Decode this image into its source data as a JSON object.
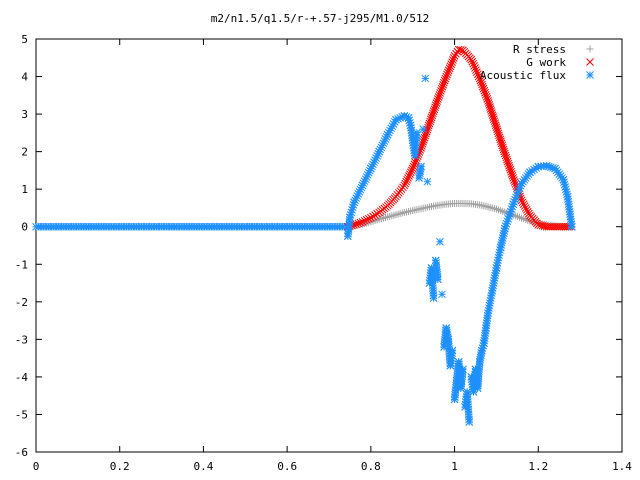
{
  "chart_data": {
    "type": "scatter",
    "title": "m2/n1.5/q1.5/r-+.57-j295/M1.0/512",
    "xlabel": "",
    "ylabel": "",
    "xlim": [
      0,
      1.4
    ],
    "ylim": [
      -6,
      5
    ],
    "xticks": [
      "0",
      "0.2",
      "0.4",
      "0.6",
      "0.8",
      "1",
      "1.2",
      "1.4"
    ],
    "yticks": [
      "-6",
      "-5",
      "-4",
      "-3",
      "-2",
      "-1",
      "0",
      "1",
      "2",
      "3",
      "4",
      "5"
    ],
    "grid": false,
    "legend_position": "top-right",
    "series": [
      {
        "name": "R stress",
        "marker": "plus",
        "color": "#a0a0a0",
        "points": [
          [
            0.745,
            0.0
          ],
          [
            0.76,
            0.03
          ],
          [
            0.78,
            0.07
          ],
          [
            0.8,
            0.13
          ],
          [
            0.82,
            0.2
          ],
          [
            0.84,
            0.26
          ],
          [
            0.86,
            0.32
          ],
          [
            0.88,
            0.38
          ],
          [
            0.9,
            0.43
          ],
          [
            0.92,
            0.48
          ],
          [
            0.94,
            0.53
          ],
          [
            0.96,
            0.57
          ],
          [
            0.98,
            0.6
          ],
          [
            1.0,
            0.62
          ],
          [
            1.02,
            0.62
          ],
          [
            1.04,
            0.61
          ],
          [
            1.06,
            0.58
          ],
          [
            1.08,
            0.53
          ],
          [
            1.1,
            0.47
          ],
          [
            1.12,
            0.39
          ],
          [
            1.14,
            0.31
          ],
          [
            1.16,
            0.23
          ],
          [
            1.18,
            0.15
          ],
          [
            1.2,
            0.09
          ],
          [
            1.22,
            0.05
          ],
          [
            1.24,
            0.02
          ],
          [
            1.26,
            0.01
          ],
          [
            1.28,
            0.0
          ]
        ]
      },
      {
        "name": "G work",
        "marker": "cross",
        "color": "#ff0000",
        "points": [
          [
            0.745,
            0.0
          ],
          [
            0.76,
            0.05
          ],
          [
            0.78,
            0.13
          ],
          [
            0.8,
            0.24
          ],
          [
            0.82,
            0.38
          ],
          [
            0.84,
            0.56
          ],
          [
            0.86,
            0.8
          ],
          [
            0.88,
            1.1
          ],
          [
            0.9,
            1.55
          ],
          [
            0.92,
            2.1
          ],
          [
            0.94,
            2.75
          ],
          [
            0.96,
            3.4
          ],
          [
            0.98,
            4.0
          ],
          [
            1.0,
            4.55
          ],
          [
            1.01,
            4.72
          ],
          [
            1.02,
            4.7
          ],
          [
            1.04,
            4.45
          ],
          [
            1.06,
            3.95
          ],
          [
            1.08,
            3.35
          ],
          [
            1.1,
            2.65
          ],
          [
            1.12,
            1.95
          ],
          [
            1.14,
            1.3
          ],
          [
            1.16,
            0.7
          ],
          [
            1.18,
            0.3
          ],
          [
            1.2,
            0.05
          ],
          [
            1.22,
            0.0
          ],
          [
            1.24,
            0.0
          ],
          [
            1.26,
            0.0
          ],
          [
            1.28,
            0.0
          ]
        ]
      },
      {
        "name": "Acoustic flux",
        "marker": "star",
        "color": "#1e90ff",
        "points": [
          [
            0.745,
            -0.25
          ],
          [
            0.75,
            0.25
          ],
          [
            0.76,
            0.65
          ],
          [
            0.78,
            1.1
          ],
          [
            0.8,
            1.55
          ],
          [
            0.82,
            2.0
          ],
          [
            0.84,
            2.45
          ],
          [
            0.86,
            2.85
          ],
          [
            0.88,
            2.95
          ],
          [
            0.89,
            2.9
          ],
          [
            0.895,
            2.7
          ],
          [
            0.9,
            2.3
          ],
          [
            0.905,
            1.9
          ],
          [
            0.91,
            2.5
          ],
          [
            0.915,
            1.3
          ],
          [
            0.92,
            1.6
          ],
          [
            0.925,
            2.6
          ],
          [
            0.93,
            3.95
          ],
          [
            0.935,
            1.2
          ],
          [
            0.94,
            -1.5
          ],
          [
            0.945,
            -1.1
          ],
          [
            0.95,
            -1.9
          ],
          [
            0.955,
            -0.9
          ],
          [
            0.96,
            -1.4
          ],
          [
            0.965,
            -0.4
          ],
          [
            0.97,
            -1.8
          ],
          [
            0.975,
            -3.2
          ],
          [
            0.98,
            -2.7
          ],
          [
            0.985,
            -3.0
          ],
          [
            0.99,
            -3.7
          ],
          [
            0.995,
            -3.3
          ],
          [
            1.0,
            -4.6
          ],
          [
            1.005,
            -4.1
          ],
          [
            1.01,
            -3.6
          ],
          [
            1.015,
            -4.3
          ],
          [
            1.02,
            -3.8
          ],
          [
            1.025,
            -4.8
          ],
          [
            1.03,
            -4.4
          ],
          [
            1.035,
            -5.2
          ],
          [
            1.04,
            -4.0
          ],
          [
            1.045,
            -4.4
          ],
          [
            1.05,
            -3.8
          ],
          [
            1.055,
            -4.3
          ],
          [
            1.06,
            -3.6
          ],
          [
            1.065,
            -3.3
          ],
          [
            1.07,
            -3.1
          ],
          [
            1.075,
            -2.7
          ],
          [
            1.08,
            -2.3
          ],
          [
            1.09,
            -1.7
          ],
          [
            1.1,
            -1.1
          ],
          [
            1.11,
            -0.55
          ],
          [
            1.12,
            -0.05
          ],
          [
            1.14,
            0.6
          ],
          [
            1.16,
            1.15
          ],
          [
            1.18,
            1.45
          ],
          [
            1.2,
            1.6
          ],
          [
            1.22,
            1.62
          ],
          [
            1.24,
            1.55
          ],
          [
            1.26,
            1.25
          ],
          [
            1.27,
            0.8
          ],
          [
            1.28,
            0.0
          ]
        ]
      }
    ],
    "baseline": {
      "series": "Acoustic flux",
      "x_range": [
        0,
        0.745
      ],
      "y": 0
    }
  }
}
